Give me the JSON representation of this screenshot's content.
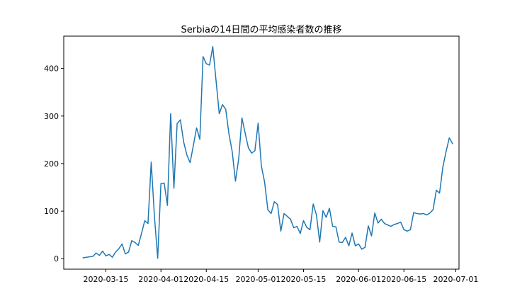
{
  "chart_data": {
    "type": "line",
    "title": "Serbiaの14日間の平均感染者数の推移",
    "xlabel": "",
    "ylabel": "",
    "x_start": "2020-03-08",
    "x_range": [
      "2020-03-02",
      "2020-07-02"
    ],
    "ylim": [
      -22,
      468
    ],
    "grid": false,
    "legend": "none",
    "x_ticks": [
      "2020-03-15",
      "2020-04-01",
      "2020-04-15",
      "2020-05-01",
      "2020-05-15",
      "2020-06-01",
      "2020-06-15",
      "2020-07-01"
    ],
    "y_ticks": [
      0,
      100,
      200,
      300,
      400
    ],
    "series": [
      {
        "color": "#1f77b4",
        "values": [
          2,
          3,
          4,
          5,
          12,
          7,
          16,
          6,
          9,
          3,
          14,
          21,
          31,
          10,
          14,
          38,
          34,
          28,
          53,
          80,
          74,
          203,
          88,
          1,
          158,
          159,
          112,
          305,
          148,
          284,
          292,
          246,
          218,
          202,
          238,
          275,
          251,
          425,
          410,
          407,
          446,
          375,
          305,
          324,
          314,
          262,
          225,
          163,
          210,
          296,
          264,
          233,
          222,
          227,
          285,
          195,
          161,
          103,
          95,
          120,
          114,
          58,
          95,
          89,
          83,
          65,
          68,
          53,
          80,
          66,
          61,
          115,
          92,
          35,
          101,
          87,
          106,
          68,
          67,
          35,
          34,
          45,
          27,
          54,
          27,
          31,
          20,
          24,
          69,
          48,
          96,
          75,
          83,
          74,
          71,
          68,
          72,
          74,
          77,
          61,
          58,
          61,
          97,
          95,
          94,
          95,
          92,
          96,
          103,
          144,
          138,
          192,
          225,
          254,
          242
        ]
      }
    ]
  }
}
